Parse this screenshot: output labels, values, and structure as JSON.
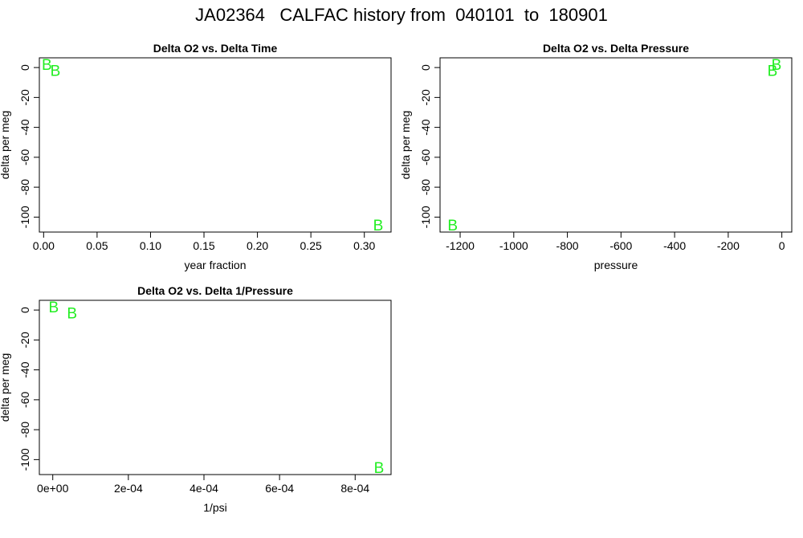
{
  "title": "JA02364   CALFAC history from  040101  to  180901",
  "point_color": "#22ee22",
  "chart_data": [
    {
      "type": "scatter",
      "title": "Delta O2 vs. Delta Time",
      "xlabel": "year fraction",
      "ylabel": "delta per meg",
      "xlim": [
        -0.004,
        0.325
      ],
      "ylim": [
        -110,
        6.5
      ],
      "xticks": [
        0.0,
        0.05,
        0.1,
        0.15,
        0.2,
        0.25,
        0.3
      ],
      "xtick_labels": [
        "0.00",
        "0.05",
        "0.10",
        "0.15",
        "0.20",
        "0.25",
        "0.30"
      ],
      "yticks": [
        0,
        -20,
        -40,
        -60,
        -80,
        -100
      ],
      "ytick_labels": [
        "0",
        "-20",
        "-40",
        "-60",
        "-80",
        "-100"
      ],
      "marker": "B",
      "points": [
        {
          "x": 0.003,
          "y": 1.5
        },
        {
          "x": 0.011,
          "y": -2.5
        },
        {
          "x": 0.313,
          "y": -106
        }
      ]
    },
    {
      "type": "scatter",
      "title": "Delta O2 vs. Delta Pressure",
      "xlabel": "pressure",
      "ylabel": "delta per meg",
      "xlim": [
        -1275,
        37
      ],
      "ylim": [
        -110,
        6.5
      ],
      "xticks": [
        -1200,
        -1000,
        -800,
        -600,
        -400,
        -200,
        0
      ],
      "xtick_labels": [
        "-1200",
        "-1000",
        "-800",
        "-600",
        "-400",
        "-200",
        "0"
      ],
      "yticks": [
        0,
        -20,
        -40,
        -60,
        -80,
        -100
      ],
      "ytick_labels": [
        "0",
        "-20",
        "-40",
        "-60",
        "-80",
        "-100"
      ],
      "marker": "B",
      "points": [
        {
          "x": -20,
          "y": 1.5
        },
        {
          "x": -35,
          "y": -2.5
        },
        {
          "x": -1228,
          "y": -106
        }
      ]
    },
    {
      "type": "scatter",
      "title": "Delta O2 vs. Delta 1/Pressure",
      "xlabel": "1/psi",
      "ylabel": "delta per meg",
      "xlim": [
        -3.55e-05,
        0.000895
      ],
      "ylim": [
        -110,
        6.5
      ],
      "xticks": [
        0,
        0.0002,
        0.0004,
        0.0006,
        0.0008
      ],
      "xtick_labels": [
        "0e+00",
        "2e-04",
        "4e-04",
        "6e-04",
        "8e-04"
      ],
      "yticks": [
        0,
        -20,
        -40,
        -60,
        -80,
        -100
      ],
      "ytick_labels": [
        "0",
        "-20",
        "-40",
        "-60",
        "-80",
        "-100"
      ],
      "marker": "B",
      "points": [
        {
          "x": 2.5e-06,
          "y": 1.5
        },
        {
          "x": 5.1e-05,
          "y": -2.5
        },
        {
          "x": 0.000863,
          "y": -106
        }
      ]
    }
  ]
}
